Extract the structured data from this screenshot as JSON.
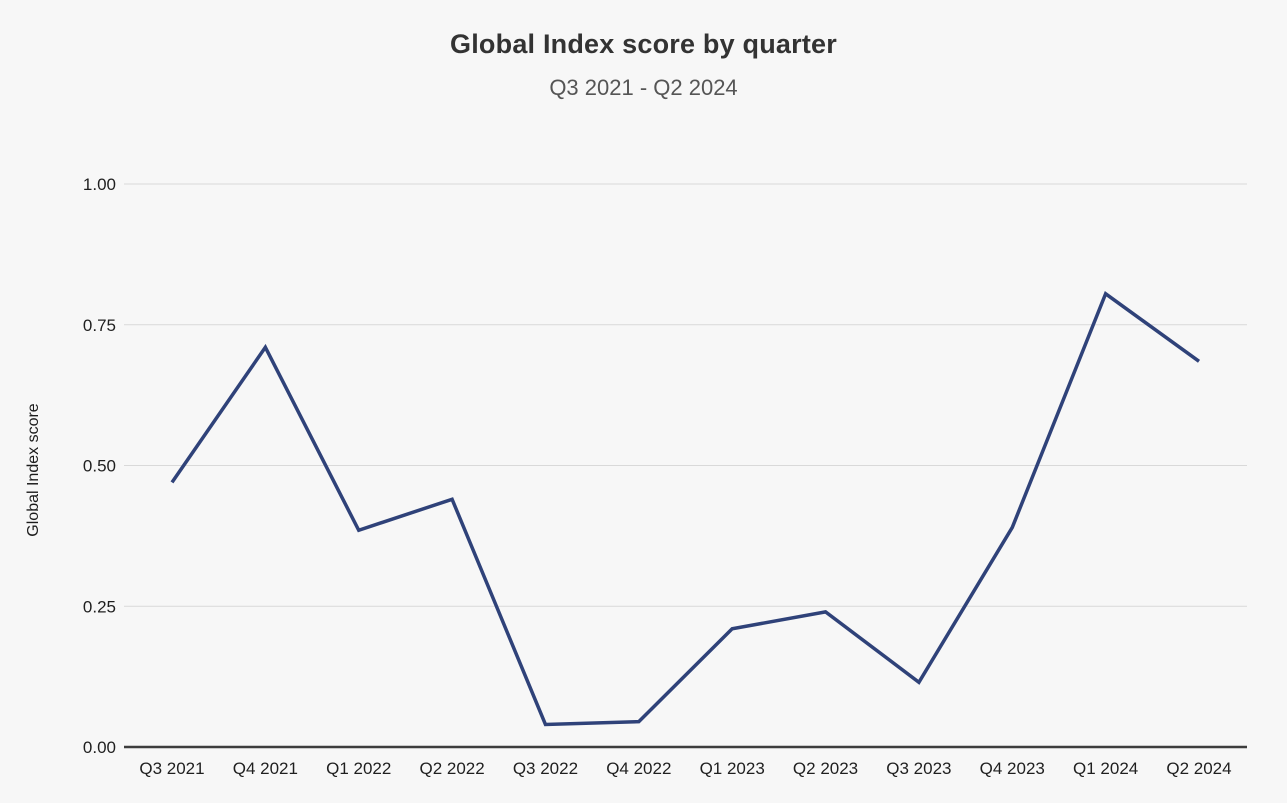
{
  "chart_data": {
    "type": "line",
    "title": "Global Index score by quarter",
    "subtitle": "Q3 2021 - Q2 2024",
    "ylabel": "Global Index score",
    "xlabel": "",
    "categories": [
      "Q3 2021",
      "Q4 2021",
      "Q1 2022",
      "Q2 2022",
      "Q3 2022",
      "Q4 2022",
      "Q1 2023",
      "Q2 2023",
      "Q3 2023",
      "Q4 2023",
      "Q1 2024",
      "Q2 2024"
    ],
    "values": [
      0.47,
      0.71,
      0.385,
      0.44,
      0.04,
      0.045,
      0.21,
      0.24,
      0.115,
      0.39,
      0.805,
      0.685
    ],
    "ylim": [
      0,
      1
    ],
    "y_ticks": [
      0,
      0.25,
      0.5,
      0.75,
      1
    ],
    "y_tick_labels": [
      "0.00",
      "0.25",
      "0.50",
      "0.75",
      "1.00"
    ],
    "grid": "horizontal",
    "legend": "none",
    "colors": {
      "background": "#f7f7f7",
      "line": "#2f4279",
      "gridline": "#d9d9d9",
      "axis_line": "#3d3d3d",
      "tick_label": "#1f1f1f",
      "title": "#333333",
      "subtitle": "#555555",
      "axis_title": "#1c1c1c"
    }
  }
}
